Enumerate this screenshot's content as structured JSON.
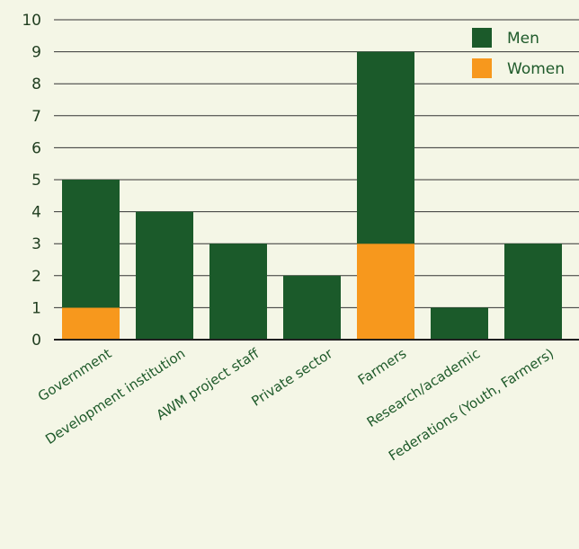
{
  "chart_data": {
    "type": "bar",
    "stacked": true,
    "categories": [
      "Government",
      "Development institution",
      "AWM project staff",
      "Private sector",
      "Farmers",
      "Research/academic",
      "Federations (Youth, Farmers)"
    ],
    "series": [
      {
        "name": "Women",
        "color": "#f7981d",
        "values": [
          1,
          0,
          0,
          0,
          3,
          0,
          0
        ]
      },
      {
        "name": "Men",
        "color": "#1b5a2a",
        "values": [
          4,
          4,
          3,
          2,
          6,
          1,
          3
        ]
      }
    ],
    "ylim": [
      0,
      10
    ],
    "yticks": [
      0,
      1,
      2,
      3,
      4,
      5,
      6,
      7,
      8,
      9,
      10
    ],
    "grid": true,
    "legend": {
      "position": "top-right",
      "order": [
        "Men",
        "Women"
      ]
    },
    "colors": {
      "background": "#f4f6e6",
      "axis": "#1f1f1f"
    }
  }
}
